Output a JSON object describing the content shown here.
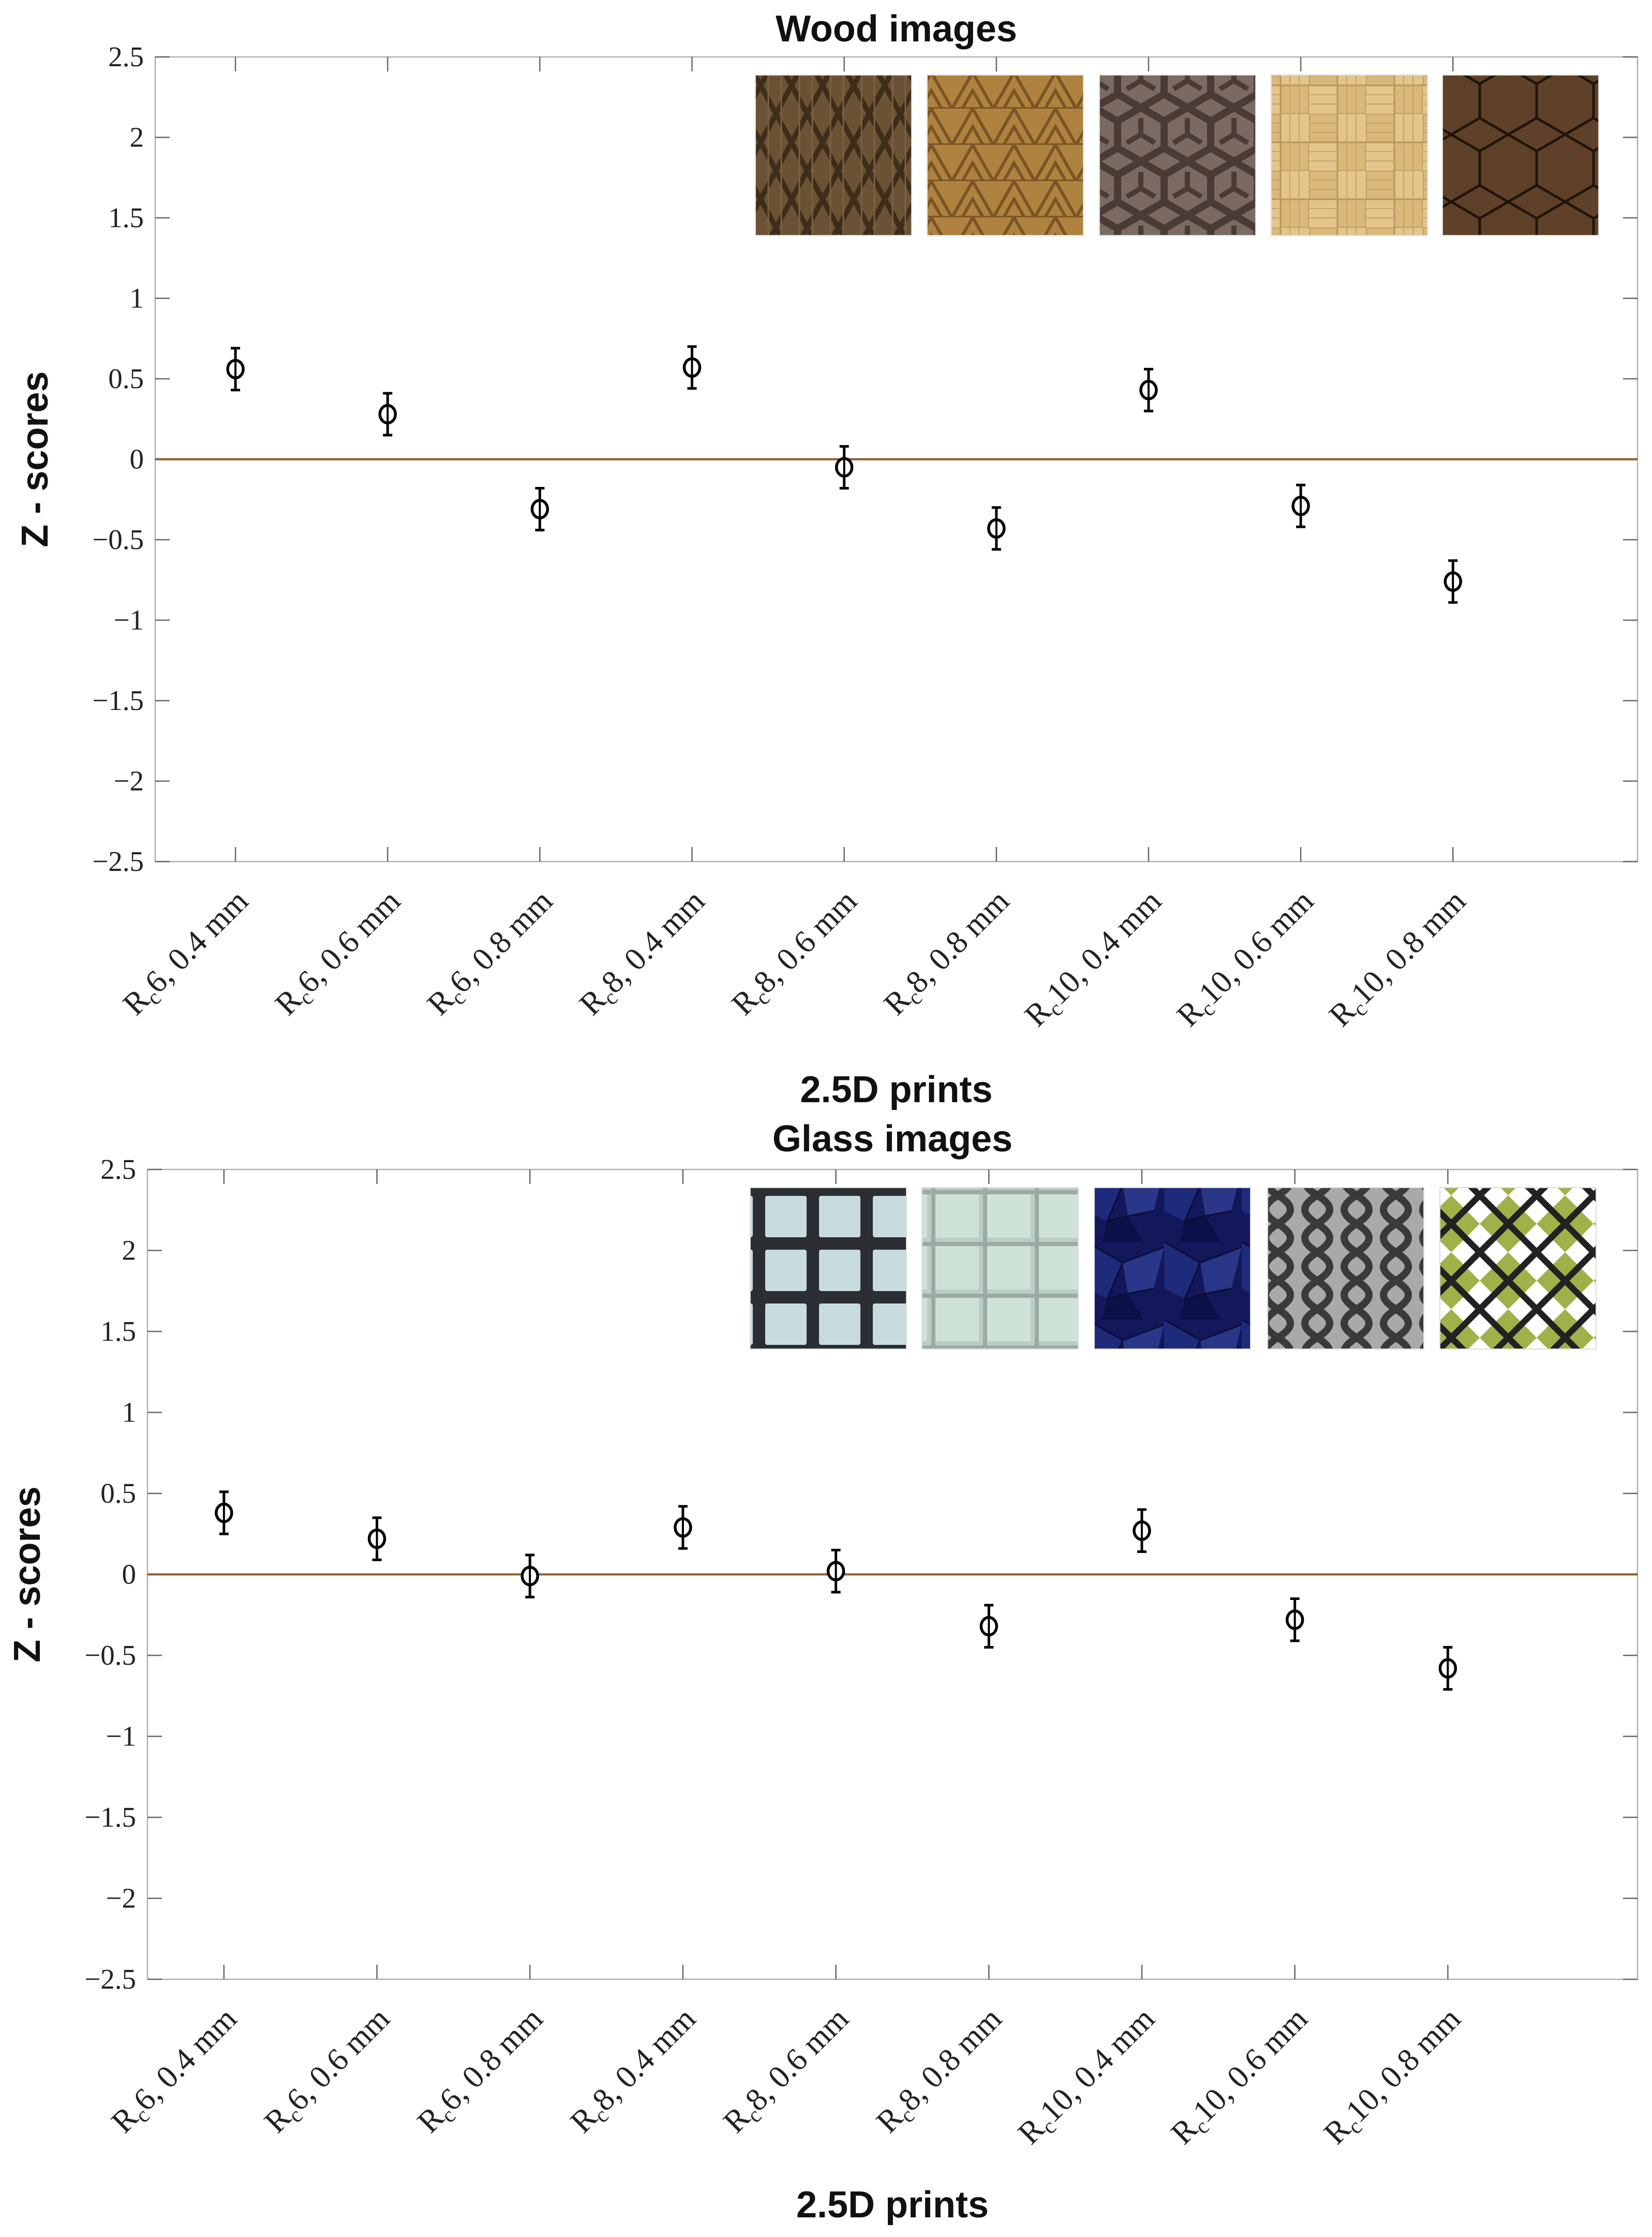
{
  "chart_data": [
    {
      "type": "scatter",
      "title": "Wood images",
      "xlabel": "2.5D prints",
      "ylabel": "Z - scores",
      "ylim": [
        -2.5,
        2.5
      ],
      "yticks": [
        "2.5",
        "2",
        "1.5",
        "1",
        "0.5",
        "0",
        "−0.5",
        "−1",
        "−1.5",
        "−2",
        "−2.5"
      ],
      "ytick_values": [
        2.5,
        2,
        1.5,
        1,
        0.5,
        0,
        -0.5,
        -1,
        -1.5,
        -2,
        -2.5
      ],
      "categories": [
        {
          "main": "R",
          "sub": "c",
          "rest": "6, 0.4 mm"
        },
        {
          "main": "R",
          "sub": "c",
          "rest": "6, 0.6 mm"
        },
        {
          "main": "R",
          "sub": "c",
          "rest": "6, 0.8 mm"
        },
        {
          "main": "R",
          "sub": "c",
          "rest": "8, 0.4 mm"
        },
        {
          "main": "R",
          "sub": "c",
          "rest": "8, 0.6 mm"
        },
        {
          "main": "R",
          "sub": "c",
          "rest": "8, 0.8 mm"
        },
        {
          "main": "R",
          "sub": "c",
          "rest": "10, 0.4 mm"
        },
        {
          "main": "R",
          "sub": "c",
          "rest": "10, 0.6 mm"
        },
        {
          "main": "R",
          "sub": "c",
          "rest": "10, 0.8 mm"
        }
      ],
      "values": [
        0.56,
        0.28,
        -0.31,
        0.57,
        -0.05,
        -0.43,
        0.43,
        -0.29,
        -0.76
      ],
      "errors": [
        0.13,
        0.13,
        0.13,
        0.13,
        0.13,
        0.13,
        0.13,
        0.13,
        0.13
      ],
      "reference_line": 0,
      "reference_color": "#8B5A2B",
      "inset_images": [
        "wood-diamond-texture",
        "wood-triangle-texture",
        "wood-hexagon-texture",
        "wood-parquet-texture",
        "wood-hexagon-tile-texture"
      ]
    },
    {
      "type": "scatter",
      "title": "Glass images",
      "xlabel": "2.5D prints",
      "ylabel": "Z - scores",
      "ylim": [
        -2.5,
        2.5
      ],
      "yticks": [
        "2.5",
        "2",
        "1.5",
        "1",
        "0.5",
        "0",
        "−0.5",
        "−1",
        "−1.5",
        "−2",
        "−2.5"
      ],
      "ytick_values": [
        2.5,
        2,
        1.5,
        1,
        0.5,
        0,
        -0.5,
        -1,
        -1.5,
        -2,
        -2.5
      ],
      "categories": [
        {
          "main": "R",
          "sub": "c",
          "rest": "6, 0.4 mm"
        },
        {
          "main": "R",
          "sub": "c",
          "rest": "6, 0.6 mm"
        },
        {
          "main": "R",
          "sub": "c",
          "rest": "6, 0.8 mm"
        },
        {
          "main": "R",
          "sub": "c",
          "rest": "8, 0.4 mm"
        },
        {
          "main": "R",
          "sub": "c",
          "rest": "8, 0.6 mm"
        },
        {
          "main": "R",
          "sub": "c",
          "rest": "8, 0.8 mm"
        },
        {
          "main": "R",
          "sub": "c",
          "rest": "10, 0.4 mm"
        },
        {
          "main": "R",
          "sub": "c",
          "rest": "10, 0.6 mm"
        },
        {
          "main": "R",
          "sub": "c",
          "rest": "10, 0.8 mm"
        }
      ],
      "values": [
        0.38,
        0.22,
        -0.01,
        0.29,
        0.02,
        -0.32,
        0.27,
        -0.28,
        -0.58
      ],
      "errors": [
        0.13,
        0.13,
        0.13,
        0.13,
        0.13,
        0.13,
        0.13,
        0.13,
        0.13
      ],
      "reference_line": 0,
      "reference_color": "#8B5A2B",
      "inset_images": [
        "glass-grid-texture",
        "glass-block-texture",
        "glass-navy-mosaic-texture",
        "glass-gray-ogee-texture",
        "glass-lattice-diamond-texture"
      ]
    }
  ]
}
